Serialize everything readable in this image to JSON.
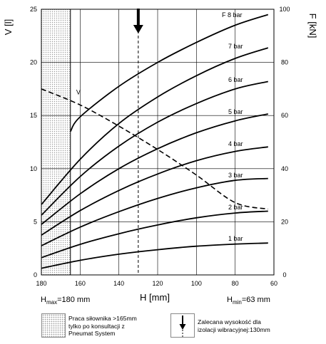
{
  "chart_data": {
    "type": "line",
    "xlabel": "H [mm]",
    "ylabel_left": "V [l]",
    "ylabel_right": "F [kN]",
    "x_range": [
      180,
      60
    ],
    "x_reversed": true,
    "y_left_range": [
      0,
      25
    ],
    "y_right_range": [
      0,
      100
    ],
    "grid": true,
    "x_ticks": [
      180,
      160,
      140,
      120,
      100,
      80,
      60
    ],
    "y_left_ticks": [
      0,
      5,
      10,
      15,
      20,
      25
    ],
    "y_right_ticks": [
      0,
      20,
      40,
      60,
      80,
      100
    ],
    "h_max_label": {
      "main": "H",
      "sub": "max",
      "rest": "=180 mm"
    },
    "h_min_label": {
      "main": "H",
      "sub": "min",
      "rest": "=63 mm"
    },
    "recommended_height": 130,
    "restricted_limit": 165,
    "force_series": [
      {
        "name": "1 bar",
        "label": "1 bar",
        "x": [
          180,
          160,
          140,
          120,
          100,
          80,
          63
        ],
        "values": [
          2.5,
          5.5,
          7.8,
          9.5,
          10.8,
          11.6,
          12.0
        ]
      },
      {
        "name": "2 bar",
        "label": "2 bar",
        "x": [
          180,
          160,
          140,
          120,
          100,
          80,
          63
        ],
        "values": [
          6.5,
          11.5,
          15.5,
          18.8,
          21.5,
          23.3,
          24.0
        ]
      },
      {
        "name": "3 bar",
        "label": "3 bar",
        "x": [
          180,
          160,
          140,
          120,
          100,
          80,
          63
        ],
        "values": [
          11.0,
          18.0,
          23.8,
          28.8,
          32.8,
          35.6,
          36.3
        ]
      },
      {
        "name": "4 bar",
        "label": "4 bar",
        "x": [
          180,
          160,
          140,
          120,
          100,
          80,
          63
        ],
        "values": [
          15.0,
          24.2,
          31.8,
          38.0,
          43.0,
          46.5,
          48.2
        ]
      },
      {
        "name": "5 bar",
        "label": "5 bar",
        "x": [
          180,
          160,
          140,
          120,
          100,
          80,
          63
        ],
        "values": [
          19.0,
          30.5,
          40.0,
          47.5,
          53.5,
          58.0,
          60.6
        ]
      },
      {
        "name": "6 bar",
        "label": "6 bar",
        "x": [
          180,
          160,
          140,
          120,
          100,
          80,
          63
        ],
        "values": [
          22.5,
          37.0,
          48.5,
          57.5,
          64.5,
          70.0,
          72.8
        ]
      },
      {
        "name": "7 bar",
        "label": "7 bar",
        "x": [
          180,
          160,
          140,
          120,
          100,
          80,
          63
        ],
        "values": [
          26.5,
          43.5,
          57.0,
          67.0,
          75.0,
          81.5,
          85.5
        ]
      },
      {
        "name": "8 bar",
        "label": "F 8 bar",
        "x": [
          165,
          160,
          140,
          120,
          100,
          80,
          63
        ],
        "values": [
          54.0,
          59.5,
          71.0,
          80.0,
          87.5,
          94.0,
          98.0
        ]
      }
    ],
    "volume_series": {
      "name": "V",
      "label": "V",
      "x": [
        180,
        160,
        140,
        120,
        100,
        80,
        63
      ],
      "values": [
        17.5,
        16.0,
        14.0,
        11.8,
        9.4,
        6.8,
        6.2
      ]
    }
  },
  "legend": {
    "restricted": {
      "icon": "dotted-hatch",
      "text_lines": [
        "Praca siłownika >165mm",
        "tylko po konsultacji z",
        "Pneumat System"
      ]
    },
    "recommended": {
      "icon": "arrow-down-icon",
      "text_lines": [
        "Zalecana wysokość dla",
        "izolacji wibracyjnej:130mm"
      ]
    }
  }
}
